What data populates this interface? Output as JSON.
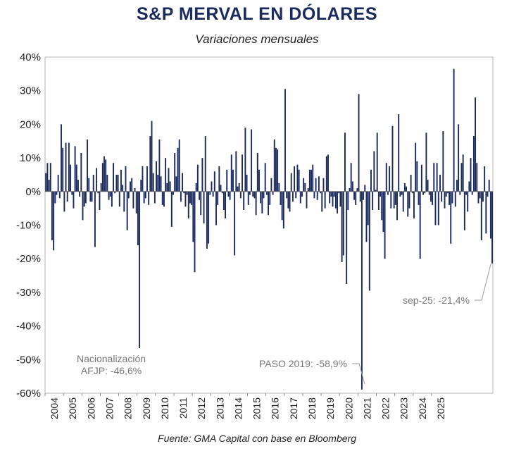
{
  "chart_data": {
    "type": "bar",
    "title": "S&P MERVAL EN DÓLARES",
    "subtitle": "Variaciones mensuales",
    "source": "Fuente: GMA Capital con base en Bloomberg",
    "unit": "%",
    "ylim": [
      -60,
      40
    ],
    "yticks": [
      "40%",
      "30%",
      "20%",
      "10%",
      "0%",
      "-10%",
      "-20%",
      "-30%",
      "-40%",
      "-50%",
      "-60%"
    ],
    "ytick_values": [
      40,
      30,
      20,
      10,
      0,
      -10,
      -20,
      -30,
      -40,
      -50,
      -60
    ],
    "xticks": [
      "2004",
      "2005",
      "2006",
      "2007",
      "2008",
      "2009",
      "2010",
      "2011",
      "2012",
      "2013",
      "2014",
      "2015",
      "2016",
      "2017",
      "2018",
      "2019",
      "2020",
      "2021",
      "2022",
      "2023",
      "2024",
      "2025"
    ],
    "x_start": "2004-01",
    "x_end": "2025-09",
    "grid": false,
    "bar_color": "#1b2a5c",
    "values": [
      5.5,
      8.5,
      3.5,
      8.5,
      -14.5,
      -17.5,
      -3.5,
      -1.0,
      5.0,
      -2.0,
      20.0,
      13.0,
      -6.0,
      14.5,
      -3.0,
      14.5,
      8.0,
      -1.0,
      -5.0,
      13.5,
      8.0,
      3.5,
      -1.5,
      11.5,
      -8.5,
      -4.5,
      -3.5,
      15.5,
      4.0,
      -3.0,
      -3.0,
      5.0,
      -16.5,
      7.0,
      -0.5,
      -5.5,
      2.5,
      8.5,
      10.5,
      9.5,
      5.0,
      -2.5,
      -1.5,
      -4.5,
      8.5,
      -0.5,
      5.0,
      5.0,
      -4.5,
      6.5,
      2.0,
      -6.0,
      7.5,
      -11.5,
      -2.0,
      3.0,
      4.0,
      -5.0,
      1.0,
      -6.5,
      -16.0,
      -46.6,
      3.5,
      7.5,
      -3.5,
      -2.0,
      7.5,
      -4.0,
      16.5,
      21.0,
      5.5,
      -3.5,
      9.0,
      5.0,
      15.5,
      4.5,
      -4.0,
      -4.5,
      10.0,
      2.5,
      7.0,
      3.0,
      -10.5,
      -1.0,
      11.5,
      4.5,
      13.0,
      15.5,
      -3.0,
      5.5,
      -0.5,
      -4.5,
      -1.0,
      -8.0,
      -3.5,
      -4.0,
      -15.0,
      -24.0,
      2.5,
      8.0,
      -2.5,
      -7.0,
      10.0,
      -9.5,
      16.5,
      -17.0,
      -15.5,
      -1.0,
      3.0,
      -1.5,
      6.0,
      -10.0,
      -4.0,
      7.5,
      2.0,
      -0.5,
      -5.5,
      -8.0,
      6.5,
      -1.5,
      -2.5,
      11.0,
      6.5,
      -19.0,
      12.0,
      1.5,
      2.5,
      -2.0,
      11.0,
      -5.5,
      19.0,
      5.0,
      -4.0,
      -1.0,
      18.5,
      -1.5,
      -2.0,
      -7.0,
      11.5,
      6.5,
      -3.5,
      -6.5,
      -2.0,
      8.5,
      -1.0,
      -7.0,
      -4.0,
      4.0,
      -1.0,
      15.5,
      13.0,
      12.5,
      2.5,
      -4.0,
      -8.5,
      -11.0,
      30.5,
      -2.0,
      -5.0,
      -6.0,
      5.5,
      -3.0,
      7.5,
      -2.0,
      8.0,
      6.5,
      -3.5,
      -1.5,
      4.0,
      2.5,
      -5.0,
      1.0,
      6.5,
      6.5,
      8.0,
      -2.0,
      4.0,
      -2.5,
      4.5,
      -0.5,
      -6.0,
      4.0,
      -5.0,
      10.5,
      11.0,
      -3.5,
      -1.5,
      -4.5,
      -1.5,
      -5.0,
      -6.5,
      -0.5,
      -4.5,
      -21.0,
      -19.0,
      17.5,
      -27.5,
      -5.5,
      1.0,
      8.5,
      3.0,
      -2.5,
      -4.0,
      1.0,
      29.0,
      -3.0,
      -58.9,
      -2.5,
      2.0,
      -15.0,
      -10.0,
      -29.5,
      6.5,
      -5.5,
      12.0,
      0.5,
      17.5,
      -5.5,
      -1.5,
      -8.5,
      -12.0,
      -20.0,
      8.5,
      -1.0,
      7.5,
      -5.0,
      19.5,
      -5.0,
      -4.0,
      -8.5,
      23.0,
      -1.5,
      -1.0,
      -6.0,
      2.5,
      1.5,
      -7.5,
      -5.0,
      5.0,
      -0.5,
      -8.0,
      14.5,
      9.0,
      -4.0,
      -20.0,
      8.0,
      -1.0,
      -0.5,
      17.5,
      3.5,
      -1.0,
      -3.0,
      -4.0,
      8.5,
      -10.0,
      8.5,
      -10.0,
      5.0,
      -3.0,
      18.0,
      -5.0,
      -1.5,
      -0.5,
      -4.0,
      -15.5,
      -3.5,
      36.5,
      -4.5,
      3.5,
      20.0,
      -1.0,
      8.5,
      11.0,
      -11.5,
      -1.0,
      -6.0,
      3.0,
      10.0,
      -1.0,
      16.5,
      28.0,
      8.5,
      -3.5,
      -2.0,
      -14.5,
      -3.0,
      7.5,
      -12.5,
      -1.5,
      3.5,
      -14.0,
      -21.4
    ],
    "annotations": [
      {
        "line1": "Nacionalización",
        "line2": "AFJP: -46,6%",
        "target": "2008-11"
      },
      {
        "line1": "PASO 2019: -58,9%",
        "target": "2019-08"
      },
      {
        "line1": "sep-25: -21,4%",
        "target": "2025-09"
      }
    ]
  }
}
